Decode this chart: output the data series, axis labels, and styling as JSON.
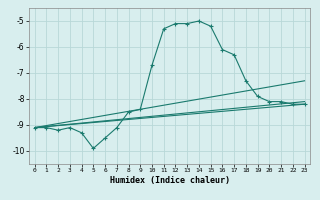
{
  "xlabel": "Humidex (Indice chaleur)",
  "background_color": "#d8eeee",
  "grid_color": "#b8d8d8",
  "line_color": "#1a7a6e",
  "xlim": [
    -0.5,
    23.5
  ],
  "ylim": [
    -10.5,
    -4.5
  ],
  "yticks": [
    -10,
    -9,
    -8,
    -7,
    -6,
    -5
  ],
  "xticks": [
    0,
    1,
    2,
    3,
    4,
    5,
    6,
    7,
    8,
    9,
    10,
    11,
    12,
    13,
    14,
    15,
    16,
    17,
    18,
    19,
    20,
    21,
    22,
    23
  ],
  "series": {
    "main": {
      "x": [
        0,
        1,
        2,
        3,
        4,
        5,
        6,
        7,
        8,
        9,
        10,
        11,
        12,
        13,
        14,
        15,
        16,
        17,
        18,
        19,
        20,
        21,
        22,
        23
      ],
      "y": [
        -9.1,
        -9.1,
        -9.2,
        -9.1,
        -9.3,
        -9.9,
        -9.5,
        -9.1,
        -8.5,
        -8.4,
        -6.7,
        -5.3,
        -5.1,
        -5.1,
        -5.0,
        -5.2,
        -6.1,
        -6.3,
        -7.3,
        -7.9,
        -8.1,
        -8.1,
        -8.2,
        -8.2
      ]
    },
    "line2": {
      "x": [
        0,
        23
      ],
      "y": [
        -9.1,
        -7.3
      ]
    },
    "line3": {
      "x": [
        0,
        23
      ],
      "y": [
        -9.1,
        -8.2
      ]
    },
    "line4": {
      "x": [
        0,
        23
      ],
      "y": [
        -9.1,
        -8.1
      ]
    }
  }
}
